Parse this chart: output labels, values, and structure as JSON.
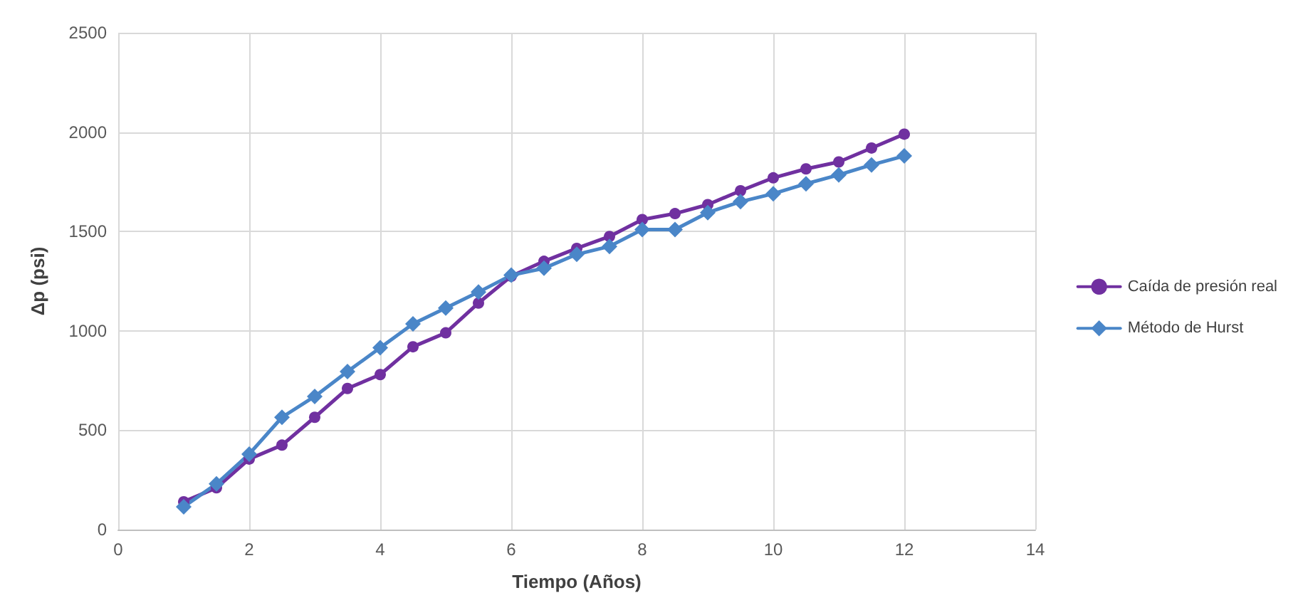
{
  "chart_data": {
    "type": "line",
    "xlabel": "Tiempo (Años)",
    "ylabel": "Δp (psi)",
    "x": [
      1,
      1.5,
      2,
      2.5,
      3,
      3.5,
      4,
      4.5,
      5,
      5.5,
      6,
      6.5,
      7,
      7.5,
      8,
      8.5,
      9,
      9.5,
      10,
      10.5,
      11,
      11.5,
      12
    ],
    "series": [
      {
        "name": "Caída de presión real",
        "color": "#7030a0",
        "marker": "circle",
        "values": [
          140,
          210,
          355,
          425,
          565,
          710,
          780,
          920,
          990,
          1140,
          1275,
          1350,
          1415,
          1475,
          1560,
          1590,
          1635,
          1705,
          1770,
          1815,
          1850,
          1920,
          1990
        ]
      },
      {
        "name": "Método de Hurst",
        "color": "#4a86c8",
        "marker": "diamond",
        "values": [
          115,
          230,
          380,
          565,
          670,
          795,
          915,
          1035,
          1115,
          1195,
          1280,
          1315,
          1385,
          1425,
          1510,
          1510,
          1595,
          1650,
          1690,
          1740,
          1785,
          1835,
          1880
        ]
      }
    ],
    "xlim": [
      0,
      14
    ],
    "xticks": [
      0,
      2,
      4,
      6,
      8,
      10,
      12,
      14
    ],
    "ylim": [
      0,
      2500
    ],
    "yticks": [
      0,
      500,
      1000,
      1500,
      2000,
      2500
    ],
    "grid": true,
    "legend": "right",
    "line_style": "solid"
  }
}
